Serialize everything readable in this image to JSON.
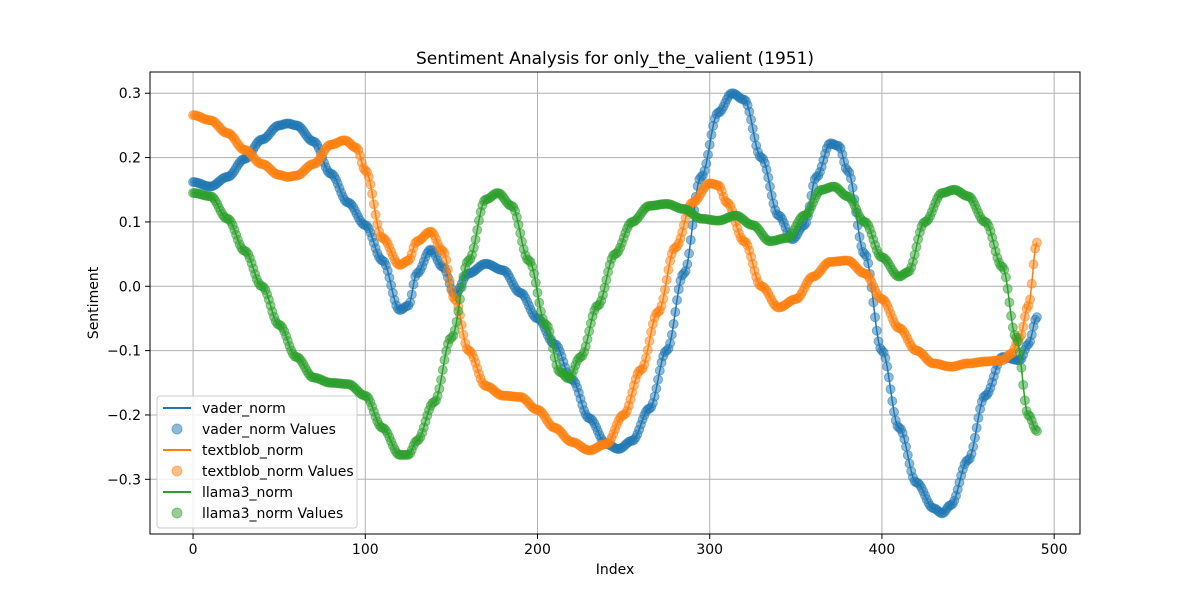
{
  "chart_data": {
    "type": "line",
    "title": "Sentiment Analysis for only_the_valient (1951)",
    "xlabel": "Index",
    "ylabel": "Sentiment",
    "xlim": [
      -25,
      515
    ],
    "ylim": [
      -0.385,
      0.333
    ],
    "xticks": [
      0,
      100,
      200,
      300,
      400,
      500
    ],
    "yticks": [
      -0.3,
      -0.2,
      -0.1,
      0.0,
      0.1,
      0.2,
      0.3
    ],
    "xtick_labels": [
      "0",
      "100",
      "200",
      "300",
      "400",
      "500"
    ],
    "ytick_labels": [
      "−0.3",
      "−0.2",
      "−0.1",
      "0.0",
      "0.1",
      "0.2",
      "0.3"
    ],
    "grid": true,
    "legend_position": "lower-left",
    "x_max_index": 490,
    "series": [
      {
        "name": "vader_norm",
        "scatter_name": "vader_norm Values",
        "color": "#1f77b4",
        "points": [
          [
            0,
            0.162
          ],
          [
            10,
            0.155
          ],
          [
            20,
            0.17
          ],
          [
            30,
            0.198
          ],
          [
            40,
            0.228
          ],
          [
            50,
            0.25
          ],
          [
            55,
            0.253
          ],
          [
            60,
            0.25
          ],
          [
            70,
            0.225
          ],
          [
            80,
            0.175
          ],
          [
            90,
            0.13
          ],
          [
            100,
            0.095
          ],
          [
            110,
            0.04
          ],
          [
            120,
            -0.037
          ],
          [
            125,
            -0.03
          ],
          [
            130,
            0.02
          ],
          [
            138,
            0.057
          ],
          [
            145,
            0.03
          ],
          [
            152,
            -0.012
          ],
          [
            160,
            0.02
          ],
          [
            170,
            0.035
          ],
          [
            180,
            0.025
          ],
          [
            190,
            -0.01
          ],
          [
            200,
            -0.05
          ],
          [
            210,
            -0.09
          ],
          [
            220,
            -0.145
          ],
          [
            230,
            -0.205
          ],
          [
            240,
            -0.245
          ],
          [
            247,
            -0.253
          ],
          [
            255,
            -0.24
          ],
          [
            265,
            -0.19
          ],
          [
            275,
            -0.1
          ],
          [
            285,
            0.02
          ],
          [
            295,
            0.17
          ],
          [
            305,
            0.27
          ],
          [
            313,
            0.3
          ],
          [
            320,
            0.29
          ],
          [
            330,
            0.2
          ],
          [
            340,
            0.11
          ],
          [
            348,
            0.073
          ],
          [
            355,
            0.095
          ],
          [
            362,
            0.17
          ],
          [
            370,
            0.222
          ],
          [
            375,
            0.218
          ],
          [
            380,
            0.18
          ],
          [
            390,
            0.05
          ],
          [
            400,
            -0.1
          ],
          [
            410,
            -0.22
          ],
          [
            420,
            -0.305
          ],
          [
            430,
            -0.345
          ],
          [
            435,
            -0.353
          ],
          [
            440,
            -0.34
          ],
          [
            450,
            -0.27
          ],
          [
            460,
            -0.17
          ],
          [
            470,
            -0.11
          ],
          [
            480,
            -0.115
          ],
          [
            485,
            -0.09
          ],
          [
            490,
            -0.048
          ]
        ]
      },
      {
        "name": "textblob_norm",
        "scatter_name": "textblob_norm Values",
        "color": "#ff7f0e",
        "points": [
          [
            0,
            0.266
          ],
          [
            10,
            0.258
          ],
          [
            20,
            0.238
          ],
          [
            30,
            0.212
          ],
          [
            40,
            0.19
          ],
          [
            50,
            0.173
          ],
          [
            55,
            0.17
          ],
          [
            60,
            0.172
          ],
          [
            70,
            0.19
          ],
          [
            80,
            0.22
          ],
          [
            88,
            0.227
          ],
          [
            95,
            0.215
          ],
          [
            100,
            0.18
          ],
          [
            110,
            0.075
          ],
          [
            120,
            0.033
          ],
          [
            125,
            0.04
          ],
          [
            130,
            0.07
          ],
          [
            138,
            0.085
          ],
          [
            145,
            0.055
          ],
          [
            152,
            -0.02
          ],
          [
            160,
            -0.1
          ],
          [
            170,
            -0.155
          ],
          [
            180,
            -0.17
          ],
          [
            190,
            -0.172
          ],
          [
            200,
            -0.192
          ],
          [
            210,
            -0.22
          ],
          [
            220,
            -0.242
          ],
          [
            230,
            -0.255
          ],
          [
            240,
            -0.245
          ],
          [
            250,
            -0.2
          ],
          [
            260,
            -0.13
          ],
          [
            270,
            -0.04
          ],
          [
            280,
            0.06
          ],
          [
            290,
            0.13
          ],
          [
            300,
            0.16
          ],
          [
            305,
            0.157
          ],
          [
            310,
            0.13
          ],
          [
            320,
            0.07
          ],
          [
            330,
            0.0
          ],
          [
            340,
            -0.033
          ],
          [
            350,
            -0.02
          ],
          [
            360,
            0.015
          ],
          [
            370,
            0.038
          ],
          [
            380,
            0.04
          ],
          [
            390,
            0.02
          ],
          [
            400,
            -0.02
          ],
          [
            410,
            -0.065
          ],
          [
            420,
            -0.1
          ],
          [
            430,
            -0.12
          ],
          [
            440,
            -0.125
          ],
          [
            450,
            -0.12
          ],
          [
            460,
            -0.117
          ],
          [
            470,
            -0.115
          ],
          [
            475,
            -0.105
          ],
          [
            480,
            -0.08
          ],
          [
            485,
            -0.03
          ],
          [
            490,
            0.068
          ]
        ]
      },
      {
        "name": "llama3_norm",
        "scatter_name": "llama3_norm Values",
        "color": "#2ca02c",
        "points": [
          [
            0,
            0.145
          ],
          [
            10,
            0.14
          ],
          [
            20,
            0.105
          ],
          [
            30,
            0.055
          ],
          [
            40,
            0.0
          ],
          [
            50,
            -0.06
          ],
          [
            60,
            -0.11
          ],
          [
            70,
            -0.142
          ],
          [
            80,
            -0.15
          ],
          [
            90,
            -0.152
          ],
          [
            100,
            -0.17
          ],
          [
            110,
            -0.22
          ],
          [
            120,
            -0.262
          ],
          [
            125,
            -0.262
          ],
          [
            130,
            -0.24
          ],
          [
            140,
            -0.18
          ],
          [
            150,
            -0.08
          ],
          [
            160,
            0.04
          ],
          [
            170,
            0.135
          ],
          [
            177,
            0.145
          ],
          [
            185,
            0.125
          ],
          [
            195,
            0.04
          ],
          [
            205,
            -0.06
          ],
          [
            213,
            -0.133
          ],
          [
            218,
            -0.143
          ],
          [
            225,
            -0.11
          ],
          [
            235,
            -0.03
          ],
          [
            245,
            0.05
          ],
          [
            255,
            0.1
          ],
          [
            265,
            0.125
          ],
          [
            275,
            0.128
          ],
          [
            285,
            0.12
          ],
          [
            295,
            0.105
          ],
          [
            305,
            0.102
          ],
          [
            315,
            0.11
          ],
          [
            325,
            0.095
          ],
          [
            335,
            0.07
          ],
          [
            345,
            0.075
          ],
          [
            355,
            0.11
          ],
          [
            365,
            0.15
          ],
          [
            372,
            0.155
          ],
          [
            380,
            0.14
          ],
          [
            390,
            0.1
          ],
          [
            400,
            0.045
          ],
          [
            410,
            0.015
          ],
          [
            415,
            0.022
          ],
          [
            425,
            0.1
          ],
          [
            435,
            0.145
          ],
          [
            442,
            0.15
          ],
          [
            450,
            0.14
          ],
          [
            460,
            0.1
          ],
          [
            470,
            0.03
          ],
          [
            478,
            -0.08
          ],
          [
            485,
            -0.2
          ],
          [
            490,
            -0.225
          ]
        ]
      }
    ]
  }
}
